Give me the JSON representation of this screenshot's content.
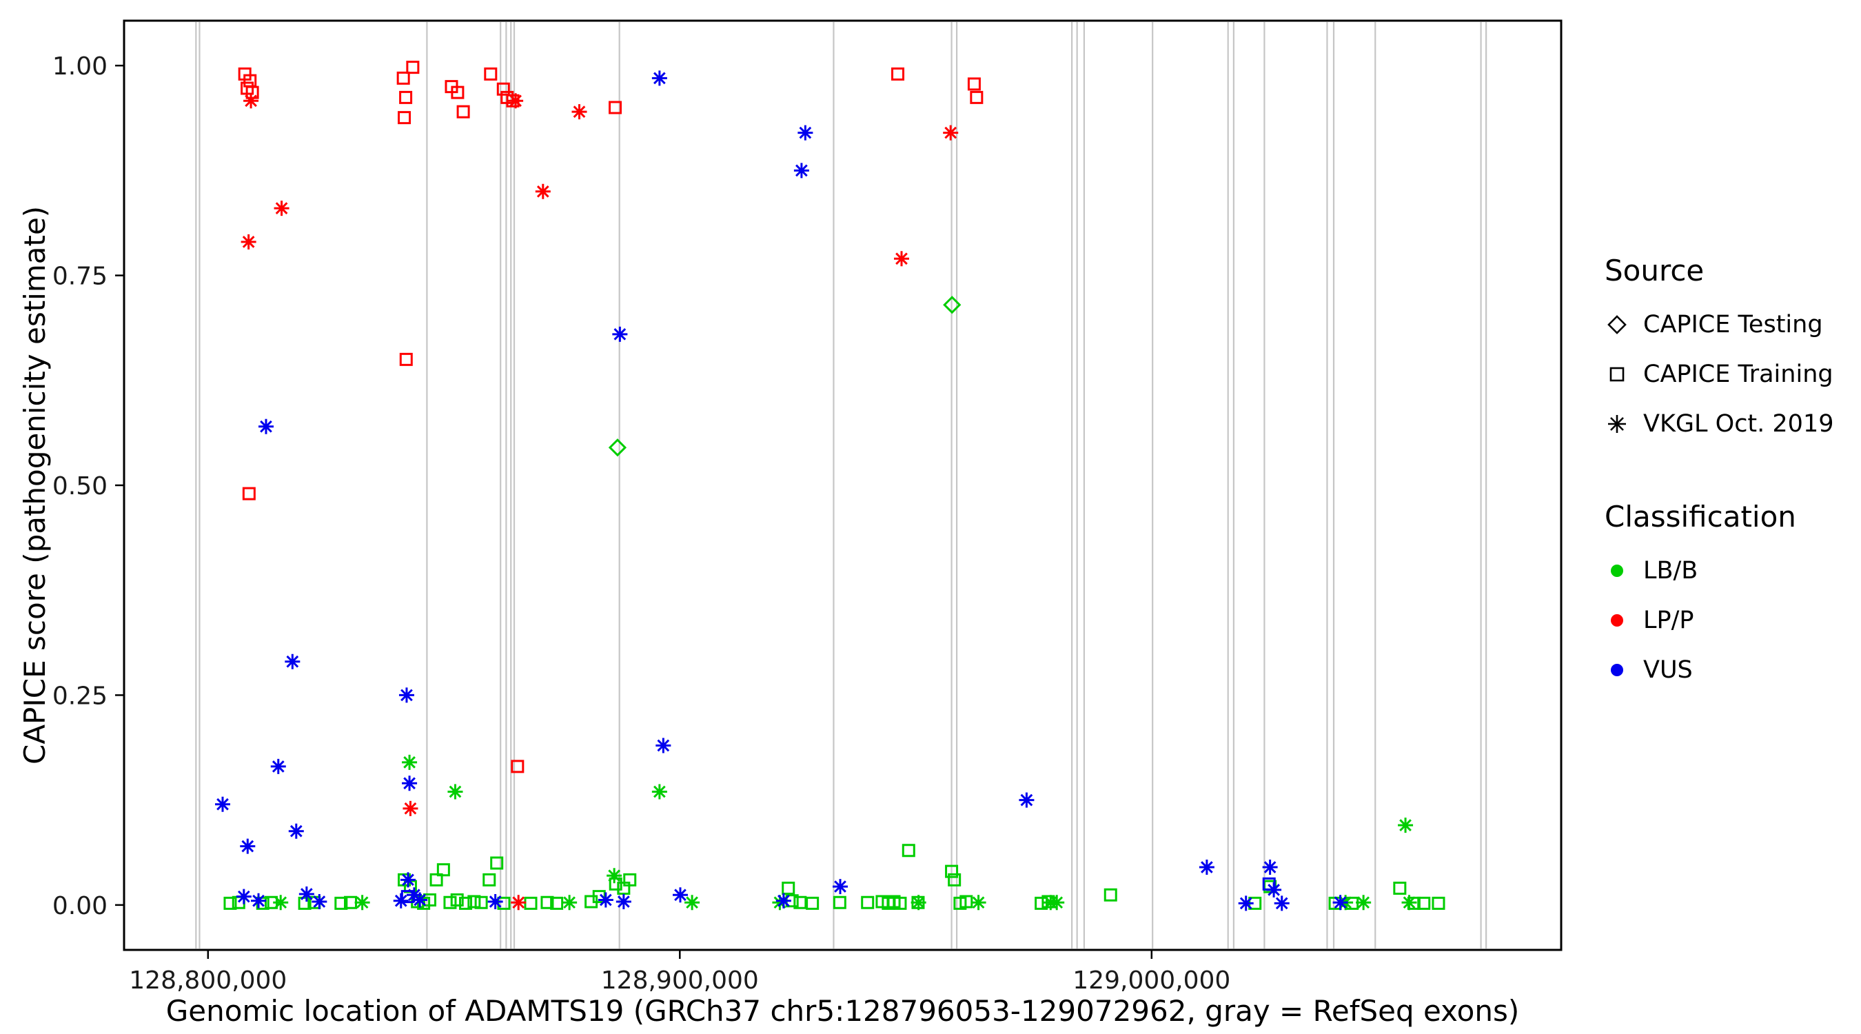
{
  "chart_data": {
    "type": "scatter",
    "title": "",
    "xlabel": "Genomic location of ADAMTS19 (GRCh37 chr5:128796053-129072962, gray = RefSeq exons)",
    "ylabel": "CAPICE score (pathogenicity estimate)",
    "x_domain": [
      128782208,
      129086807
    ],
    "y_domain": [
      -0.0535,
      1.0535
    ],
    "x_ticks": [
      {
        "value": 128800000,
        "label": "128,800,000"
      },
      {
        "value": 128900000,
        "label": "128,900,000"
      },
      {
        "value": 129000000,
        "label": "129,000,000"
      }
    ],
    "y_ticks": [
      {
        "value": 0.0,
        "label": "0.00"
      },
      {
        "value": 0.25,
        "label": "0.25"
      },
      {
        "value": 0.5,
        "label": "0.50"
      },
      {
        "value": 0.75,
        "label": "0.75"
      },
      {
        "value": 1.0,
        "label": "1.00"
      }
    ],
    "grid": "off",
    "legend_position": "right",
    "exon_line_color": "#c6c6c6",
    "exon_positions": [
      128797450,
      128798200,
      128846400,
      128862000,
      128863200,
      128864200,
      128864900,
      128887200,
      128932600,
      128957600,
      128958700,
      128983100,
      128984200,
      128985700,
      129000200,
      129016200,
      129017400,
      129023900,
      129037200,
      129038600,
      129047400,
      129069800,
      129070900
    ],
    "series": [
      {
        "source": "CAPICE Testing",
        "classification": "LB/B",
        "shape": "diamond",
        "color": "#00CD00",
        "points": [
          [
            128886800,
            0.545
          ],
          [
            128957700,
            0.715
          ]
        ]
      },
      {
        "source": "CAPICE Training",
        "classification": "LB/B",
        "shape": "square",
        "color": "#00CD00",
        "points": [
          [
            128804700,
            0.002
          ],
          [
            128806500,
            0.003
          ],
          [
            128811600,
            0.002
          ],
          [
            128813400,
            0.003
          ],
          [
            128820500,
            0.002
          ],
          [
            128822500,
            0.003
          ],
          [
            128828200,
            0.002
          ],
          [
            128830200,
            0.003
          ],
          [
            128841600,
            0.03
          ],
          [
            128842900,
            0.022
          ],
          [
            128844400,
            0.004
          ],
          [
            128845700,
            0.002
          ],
          [
            128847000,
            0.006
          ],
          [
            128848400,
            0.03
          ],
          [
            128849900,
            0.042
          ],
          [
            128851300,
            0.003
          ],
          [
            128852800,
            0.006
          ],
          [
            128854600,
            0.002
          ],
          [
            128856400,
            0.004
          ],
          [
            128857900,
            0.003
          ],
          [
            128859600,
            0.03
          ],
          [
            128861200,
            0.05
          ],
          [
            128862700,
            0.002
          ],
          [
            128868400,
            0.002
          ],
          [
            128871900,
            0.003
          ],
          [
            128873900,
            0.002
          ],
          [
            128881200,
            0.004
          ],
          [
            128882900,
            0.01
          ],
          [
            128886400,
            0.025
          ],
          [
            128888100,
            0.02
          ],
          [
            128889400,
            0.03
          ],
          [
            128923000,
            0.02
          ],
          [
            128923800,
            0.005
          ],
          [
            128925500,
            0.003
          ],
          [
            128928100,
            0.002
          ],
          [
            128933900,
            0.003
          ],
          [
            128939800,
            0.003
          ],
          [
            128942900,
            0.004
          ],
          [
            128944200,
            0.002
          ],
          [
            128945400,
            0.004
          ],
          [
            128946700,
            0.002
          ],
          [
            128948500,
            0.065
          ],
          [
            128950500,
            0.003
          ],
          [
            128957600,
            0.04
          ],
          [
            128958200,
            0.03
          ],
          [
            128959400,
            0.002
          ],
          [
            128960700,
            0.004
          ],
          [
            128976600,
            0.002
          ],
          [
            128978100,
            0.004
          ],
          [
            128991300,
            0.012
          ],
          [
            129021900,
            0.002
          ],
          [
            129025100,
            0.022
          ],
          [
            129038900,
            0.002
          ],
          [
            129042500,
            0.002
          ],
          [
            129052600,
            0.02
          ],
          [
            129055600,
            0.002
          ],
          [
            129057700,
            0.002
          ],
          [
            129060800,
            0.002
          ]
        ]
      },
      {
        "source": "CAPICE Training",
        "classification": "LP/P",
        "shape": "square",
        "color": "#FF0000",
        "points": [
          [
            128807800,
            0.99
          ],
          [
            128808900,
            0.982
          ],
          [
            128808300,
            0.973
          ],
          [
            128809400,
            0.968
          ],
          [
            128808700,
            0.49
          ],
          [
            128841400,
            0.985
          ],
          [
            128843400,
            0.998
          ],
          [
            128841900,
            0.962
          ],
          [
            128841600,
            0.938
          ],
          [
            128842000,
            0.65
          ],
          [
            128851600,
            0.975
          ],
          [
            128852900,
            0.968
          ],
          [
            128854100,
            0.945
          ],
          [
            128859900,
            0.99
          ],
          [
            128862600,
            0.972
          ],
          [
            128863400,
            0.962
          ],
          [
            128864600,
            0.958
          ],
          [
            128865600,
            0.165
          ],
          [
            128886300,
            0.95
          ],
          [
            128946200,
            0.99
          ],
          [
            128962400,
            0.978
          ],
          [
            128962900,
            0.962
          ]
        ]
      },
      {
        "source": "CAPICE Training",
        "classification": "VUS",
        "shape": "square",
        "color": "#0000EE",
        "points": [
          [
            128842300,
            0.01
          ],
          [
            129024900,
            0.025
          ]
        ]
      },
      {
        "source": "VKGL Oct. 2019",
        "classification": "LB/B",
        "shape": "asterisk",
        "color": "#00CD00",
        "points": [
          [
            128842700,
            0.17
          ],
          [
            128852400,
            0.135
          ],
          [
            128895700,
            0.135
          ],
          [
            129053800,
            0.095
          ],
          [
            128886100,
            0.035
          ],
          [
            128815400,
            0.003
          ],
          [
            128832700,
            0.003
          ],
          [
            128876600,
            0.003
          ],
          [
            128902600,
            0.003
          ],
          [
            128921200,
            0.003
          ],
          [
            128950600,
            0.003
          ],
          [
            128963300,
            0.003
          ],
          [
            128978600,
            0.003
          ],
          [
            128979900,
            0.003
          ],
          [
            129041100,
            0.003
          ],
          [
            129044900,
            0.003
          ],
          [
            129054600,
            0.003
          ]
        ]
      },
      {
        "source": "VKGL Oct. 2019",
        "classification": "LP/P",
        "shape": "asterisk",
        "color": "#FF0000",
        "points": [
          [
            128809100,
            0.958
          ],
          [
            128808600,
            0.79
          ],
          [
            128815600,
            0.83
          ],
          [
            128842900,
            0.115
          ],
          [
            128871000,
            0.85
          ],
          [
            128878700,
            0.945
          ],
          [
            128947000,
            0.77
          ],
          [
            128957400,
            0.92
          ],
          [
            128865200,
            0.958
          ],
          [
            128865800,
            0.003
          ]
        ]
      },
      {
        "source": "VKGL Oct. 2019",
        "classification": "VUS",
        "shape": "asterisk",
        "color": "#0000EE",
        "points": [
          [
            128803100,
            0.12
          ],
          [
            128808400,
            0.07
          ],
          [
            128812300,
            0.57
          ],
          [
            128814900,
            0.165
          ],
          [
            128817900,
            0.29
          ],
          [
            128818700,
            0.088
          ],
          [
            128807600,
            0.01
          ],
          [
            128810700,
            0.005
          ],
          [
            128820900,
            0.013
          ],
          [
            128823600,
            0.004
          ],
          [
            128842100,
            0.25
          ],
          [
            128842700,
            0.145
          ],
          [
            128842400,
            0.03
          ],
          [
            128840900,
            0.005
          ],
          [
            128843700,
            0.012
          ],
          [
            128844900,
            0.006
          ],
          [
            128860900,
            0.004
          ],
          [
            128884300,
            0.006
          ],
          [
            128888100,
            0.004
          ],
          [
            128887300,
            0.68
          ],
          [
            128895700,
            0.985
          ],
          [
            128896500,
            0.19
          ],
          [
            128900100,
            0.012
          ],
          [
            128926600,
            0.92
          ],
          [
            128925800,
            0.875
          ],
          [
            128922000,
            0.005
          ],
          [
            128934000,
            0.022
          ],
          [
            128973500,
            0.125
          ],
          [
            129011700,
            0.045
          ],
          [
            129025100,
            0.045
          ],
          [
            129025900,
            0.018
          ],
          [
            129027600,
            0.002
          ],
          [
            129020000,
            0.002
          ],
          [
            129040000,
            0.003
          ]
        ]
      }
    ]
  },
  "legend": {
    "source_title": "Source",
    "source_items": [
      {
        "label": "CAPICE Testing",
        "shape": "diamond"
      },
      {
        "label": "CAPICE Training",
        "shape": "square"
      },
      {
        "label": "VKGL Oct. 2019",
        "shape": "asterisk"
      }
    ],
    "classification_title": "Classification",
    "classification_items": [
      {
        "label": "LB/B",
        "color": "#00CD00"
      },
      {
        "label": "LP/P",
        "color": "#FF0000"
      },
      {
        "label": "VUS",
        "color": "#0000EE"
      }
    ]
  }
}
